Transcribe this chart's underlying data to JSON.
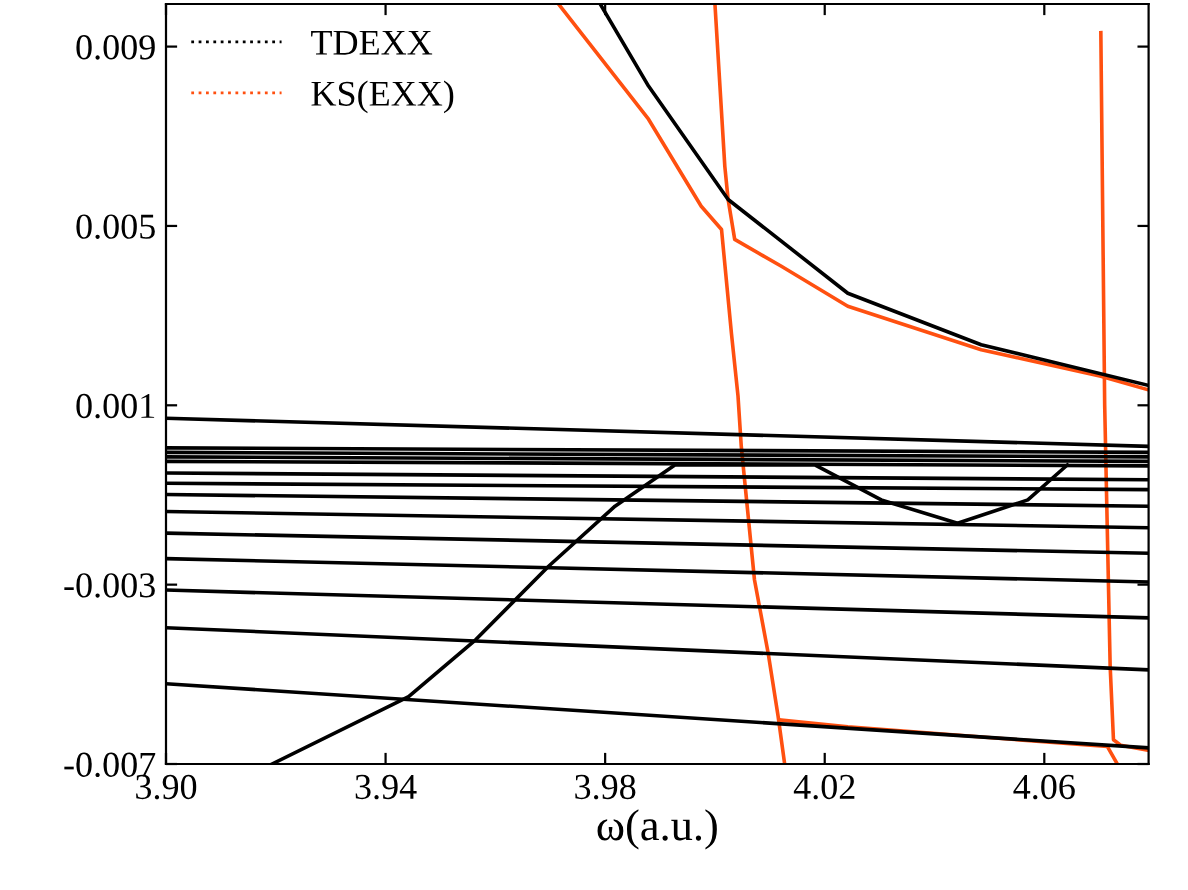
{
  "chart_data": {
    "type": "line",
    "xlabel": "ω(a.u.)",
    "xlim": [
      3.9,
      4.079
    ],
    "xticks": [
      {
        "value": 3.9,
        "label": "3.90"
      },
      3.94,
      3.98,
      4.02,
      4.06
    ],
    "ylim": [
      -0.007,
      0.00995
    ],
    "yticks": [
      0.009,
      0.005,
      0.001,
      -0.003,
      -0.007
    ],
    "grid": false,
    "legend": "top left",
    "marker": "none",
    "line_style": "solid",
    "series": [
      {
        "name": "TDEXX",
        "color": "#000000",
        "x": [
          3.9791,
          3.9879,
          4.0024,
          4.0242,
          4.0485,
          4.0788
        ],
        "values": [
          0.00995,
          0.00812,
          0.00559,
          0.0035,
          0.00235,
          0.00145
        ]
      },
      {
        "name": "KS(EXX)",
        "color": "#ff5010",
        "x": [
          3.9715,
          3.9879,
          3.9975,
          4.0012,
          4.003,
          4.0042,
          4.0048,
          4.0072,
          4.0097,
          4.0115,
          4.0127
        ],
        "values": [
          0.00995,
          0.00738,
          0.00544,
          0.00492,
          0.00261,
          0.00121,
          8e-05,
          -0.00289,
          -0.00453,
          -0.00593,
          -0.007
        ]
      },
      {
        "color": "#ff5010",
        "x": [
          4.0,
          4.0018,
          4.0024,
          4.0036,
          4.0121,
          4.0242,
          4.0485,
          4.0703,
          4.0788
        ],
        "values": [
          0.00995,
          0.00633,
          0.00559,
          0.0047,
          0.0041,
          0.00321,
          0.00224,
          0.00165,
          0.00135
        ]
      },
      {
        "color": "#ff5010",
        "x": [
          4.0121,
          4.0242,
          4.0715,
          4.0733
        ],
        "values": [
          -0.00602,
          -0.00617,
          -0.00661,
          -0.007
        ]
      },
      {
        "color": "#ff5010",
        "x": [
          4.0703,
          4.071,
          4.072,
          4.0726,
          4.0739,
          4.0788
        ],
        "values": [
          0.00931,
          0.001,
          -0.00483,
          -0.00646,
          -0.00658,
          -0.00669
        ]
      },
      {
        "color": "#000000",
        "x": [
          3.9,
          4.079
        ],
        "values": [
          0.00071,
          8.5e-05
        ]
      },
      {
        "color": "#000000",
        "x": [
          3.9,
          4.079
        ],
        "values": [
          5e-05,
          -5e-05
        ]
      },
      {
        "color": "#000000",
        "x": [
          3.9,
          4.079
        ],
        "values": [
          -5e-05,
          -0.00015
        ]
      },
      {
        "color": "#000000",
        "x": [
          3.9,
          4.079
        ],
        "values": [
          -0.00015,
          -0.00025
        ]
      },
      {
        "color": "#000000",
        "x": [
          3.9,
          4.079
        ],
        "values": [
          -0.00025,
          -0.00035
        ]
      },
      {
        "color": "#000000",
        "x": [
          3.9,
          4.079
        ],
        "values": [
          -0.00051,
          -0.00066
        ]
      },
      {
        "color": "#000000",
        "x": [
          3.9,
          4.079
        ],
        "values": [
          -0.00074,
          -0.00088
        ]
      },
      {
        "color": "#000000",
        "x": [
          3.9,
          4.079
        ],
        "values": [
          -0.00099,
          -0.00125
        ]
      },
      {
        "color": "#000000",
        "x": [
          3.9,
          4.079
        ],
        "values": [
          -0.00137,
          -0.00173
        ]
      },
      {
        "color": "#000000",
        "x": [
          3.9,
          4.079
        ],
        "values": [
          -0.00185,
          -0.0023
        ]
      },
      {
        "color": "#000000",
        "x": [
          3.9,
          4.079
        ],
        "values": [
          -0.00242,
          -0.00294
        ]
      },
      {
        "color": "#000000",
        "x": [
          3.9,
          4.079
        ],
        "values": [
          -0.00312,
          -0.00374
        ]
      },
      {
        "color": "#000000",
        "x": [
          3.9,
          4.079
        ],
        "values": [
          -0.00396,
          -0.0049
        ]
      },
      {
        "color": "#000000",
        "x": [
          3.9,
          4.079
        ],
        "values": [
          -0.00521,
          -0.00664
        ]
      },
      {
        "color": "#000000",
        "x": [
          3.9193,
          3.9442,
          3.9564,
          3.9697,
          3.9818,
          3.9927,
          4.0182,
          4.0303,
          4.0442,
          4.057,
          4.0642
        ],
        "values": [
          -0.007,
          -0.0055,
          -0.00423,
          -0.00259,
          -0.00125,
          -0.00033,
          -0.00033,
          -0.00111,
          -0.00163,
          -0.00111,
          -0.00033
        ]
      }
    ]
  }
}
